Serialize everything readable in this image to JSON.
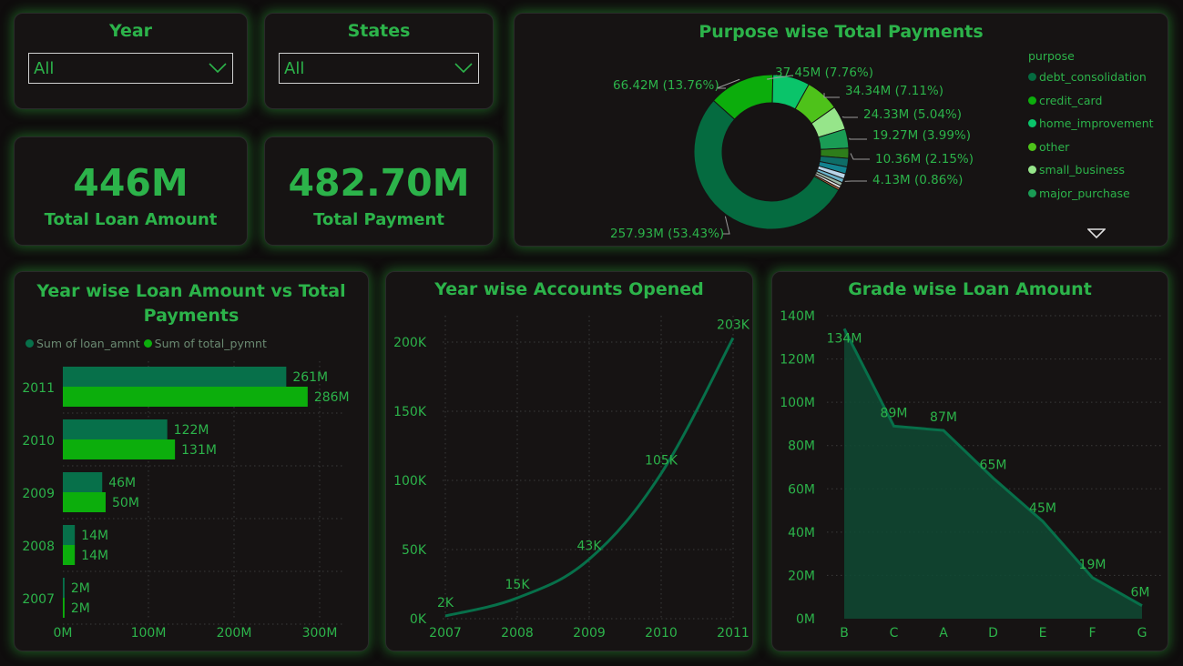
{
  "slicers": {
    "year": {
      "title": "Year",
      "value": "All"
    },
    "states": {
      "title": "States",
      "value": "All"
    }
  },
  "kpis": {
    "loan": {
      "value": "446M",
      "label": "Total Loan Amount"
    },
    "payment": {
      "value": "482.70M",
      "label": "Total Payment"
    }
  },
  "colors": {
    "loan": "#07704a",
    "payment": "#0cae0c",
    "text": "#2cb34a",
    "background": "#161313"
  },
  "chart_data": [
    {
      "id": "purpose",
      "type": "pie",
      "title": "Purpose wise Total Payments",
      "legend_title": "purpose",
      "legend_position": "right",
      "slices": [
        {
          "name": "debt_consolidation",
          "value": 257.93,
          "label": "257.93M (53.43%)",
          "color": "#056b40"
        },
        {
          "name": "credit_card",
          "value": 66.42,
          "label": "66.42M (13.76%)",
          "color": "#0cad0c"
        },
        {
          "name": "home_improvement",
          "value": 37.45,
          "label": "37.45M (7.76%)",
          "color": "#0ac46a"
        },
        {
          "name": "other",
          "value": 34.34,
          "label": "34.34M (7.11%)",
          "color": "#4ec21a"
        },
        {
          "name": "small_business",
          "value": 24.33,
          "label": "24.33M (5.04%)",
          "color": "#96e58a"
        },
        {
          "name": "major_purchase",
          "value": 19.27,
          "label": "19.27M (3.99%)",
          "color": "#1a9c55"
        },
        {
          "name": "",
          "value": 10.36,
          "label": "10.36M (2.15%)",
          "color": "#2e7d1a"
        },
        {
          "name": "",
          "value": 8.6,
          "label": "",
          "color": "#0e6d67"
        },
        {
          "name": "",
          "value": 7.0,
          "label": "",
          "color": "#12828f"
        },
        {
          "name": "",
          "value": 5.2,
          "label": "",
          "color": "#b9d4e8"
        },
        {
          "name": "",
          "value": 4.13,
          "label": "4.13M (0.86%)",
          "color": "#6bb2c9"
        },
        {
          "name": "",
          "value": 3.5,
          "label": "",
          "color": "#9bb8a8"
        },
        {
          "name": "",
          "value": 2.8,
          "label": "",
          "color": "#e0e0e0"
        },
        {
          "name": "",
          "value": 1.8,
          "label": "",
          "color": "#d9824b"
        }
      ],
      "legend": [
        "debt_consolidation",
        "credit_card",
        "home_improvement",
        "other",
        "small_business",
        "major_purchase"
      ]
    },
    {
      "id": "yearbar",
      "type": "bar",
      "title_line1": "Year wise Loan Amount vs Total",
      "title_line2": "Payments",
      "orientation": "horizontal",
      "categories": [
        "2011",
        "2010",
        "2009",
        "2008",
        "2007"
      ],
      "series": [
        {
          "name": "Sum of loan_amnt",
          "values": [
            261,
            122,
            46,
            14,
            2
          ],
          "labels": [
            "261M",
            "122M",
            "46M",
            "14M",
            "2M"
          ]
        },
        {
          "name": "Sum of total_pymnt",
          "values": [
            286,
            131,
            50,
            14,
            2
          ],
          "labels": [
            "286M",
            "131M",
            "50M",
            "14M",
            "2M"
          ]
        }
      ],
      "xlim": [
        0,
        300
      ],
      "xticks": [
        0,
        100,
        200,
        300
      ],
      "xtick_labels": [
        "0M",
        "100M",
        "200M",
        "300M"
      ],
      "grid": true,
      "legend_position": "top-left"
    },
    {
      "id": "accounts",
      "type": "line",
      "title": "Year wise Accounts Opened",
      "x": [
        "2007",
        "2008",
        "2009",
        "2010",
        "2011"
      ],
      "values": [
        2,
        15,
        43,
        105,
        203
      ],
      "labels": [
        "2K",
        "15K",
        "43K",
        "105K",
        "203K"
      ],
      "ylim": [
        0,
        200
      ],
      "yticks": [
        0,
        50,
        100,
        150,
        200
      ],
      "ytick_labels": [
        "0K",
        "50K",
        "100K",
        "150K",
        "200K"
      ],
      "grid": true
    },
    {
      "id": "grade",
      "type": "area",
      "title": "Grade wise Loan Amount",
      "x": [
        "B",
        "C",
        "A",
        "D",
        "E",
        "F",
        "G"
      ],
      "values": [
        134,
        89,
        87,
        65,
        45,
        19,
        6
      ],
      "labels": [
        "134M",
        "89M",
        "87M",
        "65M",
        "45M",
        "19M",
        "6M"
      ],
      "ylim": [
        0,
        140
      ],
      "yticks": [
        0,
        20,
        40,
        60,
        80,
        100,
        120,
        140
      ],
      "ytick_labels": [
        "0M",
        "20M",
        "40M",
        "60M",
        "80M",
        "100M",
        "120M",
        "140M"
      ],
      "grid": true
    }
  ]
}
